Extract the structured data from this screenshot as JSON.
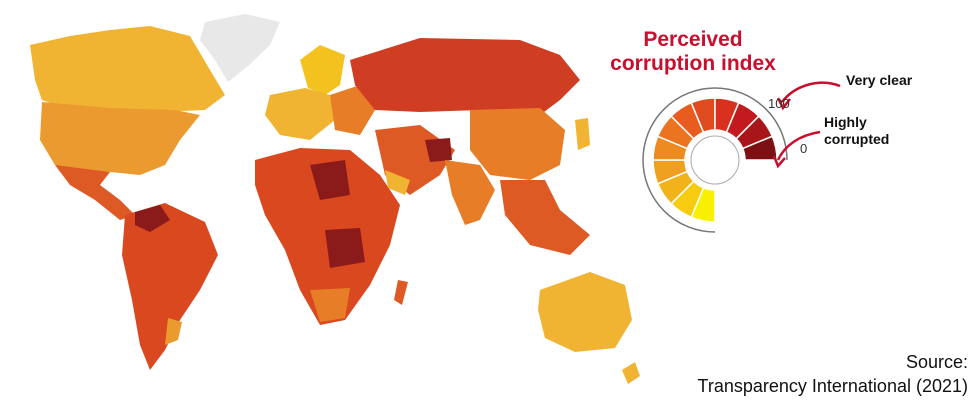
{
  "legend": {
    "title_line1": "Perceived",
    "title_line2": "corruption index",
    "max_value": "100",
    "min_value": "0",
    "label_top": "Very clear",
    "label_bottom_line1": "Highly",
    "label_bottom_line2": "corrupted",
    "scale_colors": [
      "#f8f000",
      "#f7cb10",
      "#f2b31a",
      "#efa020",
      "#ed8a20",
      "#ea7420",
      "#e85d1f",
      "#e04a1e",
      "#d8321e",
      "#c21a1e",
      "#a8161a",
      "#7d1012"
    ]
  },
  "source": {
    "line1": "Source:",
    "line2": "Transparency International (2021)"
  },
  "map_colors": {
    "very_clean": "#f1b332",
    "clean": "#eb9a30",
    "mid": "#e77d27",
    "low": "#de5a24",
    "lower": "#cf3e22",
    "lowest": "#8b1a1a",
    "no_data": "#e8e8e8",
    "accent": "#c8102e"
  }
}
